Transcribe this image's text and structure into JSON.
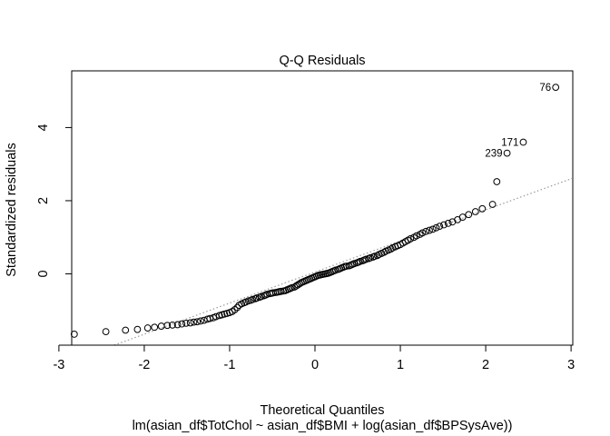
{
  "chart_data": {
    "type": "scatter",
    "title": "Q-Q Residuals",
    "xlabel": "Theoretical Quantiles",
    "sublabel": "lm(asian_df$TotChol ~ asian_df$BMI + log(asian_df$BPSysAve))",
    "ylabel": "Standardized residuals",
    "xlim": [
      -2.85,
      3.02
    ],
    "ylim": [
      -1.95,
      5.55
    ],
    "xticks": [
      -3,
      -2,
      -1,
      0,
      1,
      2,
      3
    ],
    "yticks": [
      0,
      2,
      4
    ],
    "xtick_labels": [
      "-3",
      "-2",
      "-1",
      "0",
      "1",
      "2",
      "3"
    ],
    "ytick_labels": [
      "0",
      "2",
      "4"
    ],
    "grid": false,
    "reference_line": {
      "slope": 0.85,
      "intercept": 0.05,
      "style": "dotted",
      "color": "#9a9a9a"
    },
    "points": [
      [
        -2.82,
        -1.65
      ],
      [
        -2.45,
        -1.58
      ],
      [
        -2.22,
        -1.54
      ],
      [
        -2.08,
        -1.52
      ],
      [
        -1.96,
        -1.48
      ],
      [
        -1.88,
        -1.46
      ],
      [
        -1.8,
        -1.43
      ],
      [
        -1.73,
        -1.41
      ],
      [
        -1.67,
        -1.4
      ],
      [
        -1.61,
        -1.39
      ],
      [
        -1.56,
        -1.37
      ],
      [
        -1.51,
        -1.35
      ],
      [
        -1.46,
        -1.34
      ],
      [
        -1.42,
        -1.32
      ],
      [
        -1.38,
        -1.31
      ],
      [
        -1.34,
        -1.29
      ],
      [
        -1.3,
        -1.27
      ],
      [
        -1.26,
        -1.24
      ],
      [
        -1.23,
        -1.22
      ],
      [
        -1.19,
        -1.2
      ],
      [
        -1.16,
        -1.17
      ],
      [
        -1.12,
        -1.14
      ],
      [
        -1.09,
        -1.12
      ],
      [
        -1.06,
        -1.1
      ],
      [
        -1.03,
        -1.08
      ],
      [
        -1.0,
        -1.06
      ],
      [
        -0.97,
        -1.03
      ],
      [
        -0.94,
        -0.98
      ],
      [
        -0.91,
        -0.92
      ],
      [
        -0.89,
        -0.86
      ],
      [
        -0.86,
        -0.82
      ],
      [
        -0.83,
        -0.79
      ],
      [
        -0.81,
        -0.77
      ],
      [
        -0.78,
        -0.74
      ],
      [
        -0.75,
        -0.72
      ],
      [
        -0.73,
        -0.7
      ],
      [
        -0.7,
        -0.68
      ],
      [
        -0.68,
        -0.66
      ],
      [
        -0.65,
        -0.64
      ],
      [
        -0.63,
        -0.62
      ],
      [
        -0.6,
        -0.6
      ],
      [
        -0.58,
        -0.58
      ],
      [
        -0.56,
        -0.56
      ],
      [
        -0.53,
        -0.54
      ],
      [
        -0.51,
        -0.53
      ],
      [
        -0.49,
        -0.52
      ],
      [
        -0.46,
        -0.51
      ],
      [
        -0.44,
        -0.5
      ],
      [
        -0.42,
        -0.49
      ],
      [
        -0.4,
        -0.48
      ],
      [
        -0.37,
        -0.47
      ],
      [
        -0.35,
        -0.46
      ],
      [
        -0.33,
        -0.44
      ],
      [
        -0.31,
        -0.42
      ],
      [
        -0.29,
        -0.4
      ],
      [
        -0.27,
        -0.38
      ],
      [
        -0.24,
        -0.36
      ],
      [
        -0.22,
        -0.33
      ],
      [
        -0.2,
        -0.3
      ],
      [
        -0.18,
        -0.27
      ],
      [
        -0.16,
        -0.24
      ],
      [
        -0.14,
        -0.22
      ],
      [
        -0.12,
        -0.2
      ],
      [
        -0.1,
        -0.18
      ],
      [
        -0.08,
        -0.16
      ],
      [
        -0.06,
        -0.14
      ],
      [
        -0.04,
        -0.12
      ],
      [
        -0.02,
        -0.1
      ],
      [
        0.0,
        -0.08
      ],
      [
        0.02,
        -0.06
      ],
      [
        0.04,
        -0.04
      ],
      [
        0.06,
        -0.03
      ],
      [
        0.08,
        -0.02
      ],
      [
        0.1,
        -0.01
      ],
      [
        0.12,
        0.0
      ],
      [
        0.14,
        0.01
      ],
      [
        0.16,
        0.02
      ],
      [
        0.18,
        0.04
      ],
      [
        0.2,
        0.06
      ],
      [
        0.22,
        0.08
      ],
      [
        0.24,
        0.1
      ],
      [
        0.27,
        0.12
      ],
      [
        0.29,
        0.14
      ],
      [
        0.31,
        0.16
      ],
      [
        0.33,
        0.18
      ],
      [
        0.35,
        0.2
      ],
      [
        0.37,
        0.21
      ],
      [
        0.4,
        0.22
      ],
      [
        0.42,
        0.24
      ],
      [
        0.44,
        0.26
      ],
      [
        0.46,
        0.28
      ],
      [
        0.49,
        0.3
      ],
      [
        0.51,
        0.32
      ],
      [
        0.53,
        0.34
      ],
      [
        0.56,
        0.36
      ],
      [
        0.58,
        0.38
      ],
      [
        0.6,
        0.4
      ],
      [
        0.63,
        0.42
      ],
      [
        0.65,
        0.44
      ],
      [
        0.68,
        0.46
      ],
      [
        0.7,
        0.48
      ],
      [
        0.73,
        0.5
      ],
      [
        0.75,
        0.53
      ],
      [
        0.78,
        0.56
      ],
      [
        0.81,
        0.59
      ],
      [
        0.83,
        0.62
      ],
      [
        0.86,
        0.65
      ],
      [
        0.89,
        0.68
      ],
      [
        0.91,
        0.71
      ],
      [
        0.94,
        0.74
      ],
      [
        0.97,
        0.77
      ],
      [
        1.0,
        0.8
      ],
      [
        1.03,
        0.84
      ],
      [
        1.06,
        0.88
      ],
      [
        1.09,
        0.92
      ],
      [
        1.12,
        0.96
      ],
      [
        1.16,
        1.0
      ],
      [
        1.19,
        1.04
      ],
      [
        1.23,
        1.08
      ],
      [
        1.26,
        1.12
      ],
      [
        1.3,
        1.16
      ],
      [
        1.34,
        1.19
      ],
      [
        1.38,
        1.22
      ],
      [
        1.42,
        1.26
      ],
      [
        1.46,
        1.3
      ],
      [
        1.51,
        1.34
      ],
      [
        1.56,
        1.38
      ],
      [
        1.61,
        1.42
      ],
      [
        1.67,
        1.48
      ],
      [
        1.73,
        1.55
      ],
      [
        1.8,
        1.62
      ],
      [
        1.88,
        1.7
      ],
      [
        1.96,
        1.78
      ],
      [
        2.08,
        1.9
      ],
      [
        2.13,
        2.52
      ],
      [
        2.25,
        3.3
      ],
      [
        2.44,
        3.6
      ],
      [
        2.82,
        5.1
      ]
    ],
    "point_labels": [
      {
        "text": "76",
        "x": 2.82,
        "y": 5.1
      },
      {
        "text": "171",
        "x": 2.44,
        "y": 3.6
      },
      {
        "text": "239",
        "x": 2.25,
        "y": 3.3
      }
    ]
  }
}
